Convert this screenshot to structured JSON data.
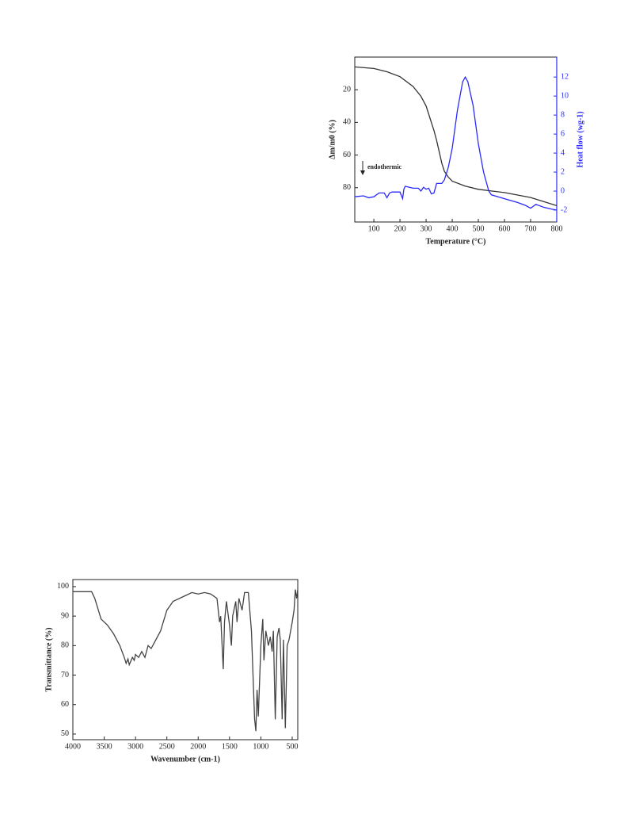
{
  "chart_data": [
    {
      "type": "line",
      "xlabel": "Temperature (°C)",
      "ylabel": "Δm/m0 (%)",
      "y2label": "Heat flow (wg-1)",
      "annotations": [
        "endothermic"
      ],
      "xlim": [
        27,
        800
      ],
      "xticks": [
        100,
        200,
        300,
        400,
        500,
        600,
        700,
        800
      ],
      "ylim": [
        101,
        0
      ],
      "yticks": [
        20,
        40,
        60,
        80
      ],
      "y2lim": [
        -3.25,
        14.1
      ],
      "y2ticks": [
        -2,
        0,
        2,
        4,
        6,
        8,
        10,
        12
      ],
      "y2_color": "#2a2aff",
      "series": [
        {
          "color": "#333333",
          "x": [
            27,
            100,
            150,
            200,
            250,
            280,
            300,
            320,
            330,
            340,
            350,
            360,
            370,
            385,
            400,
            450,
            500,
            550,
            600,
            650,
            700,
            750,
            800
          ],
          "values": [
            6,
            7,
            9,
            12,
            18,
            24,
            30,
            40,
            45,
            51,
            58,
            65,
            70,
            73.5,
            76,
            79,
            81,
            82,
            83,
            84.5,
            86,
            88.5,
            91
          ]
        },
        {
          "color": "#2a2aff",
          "axis": "y2",
          "x": [
            27,
            60,
            80,
            100,
            120,
            140,
            150,
            160,
            170,
            200,
            210,
            215,
            220,
            250,
            270,
            280,
            290,
            300,
            310,
            320,
            330,
            340,
            360,
            370,
            385,
            400,
            420,
            440,
            450,
            460,
            480,
            500,
            520,
            540,
            550,
            600,
            650,
            680,
            700,
            720,
            750,
            780,
            800
          ],
          "values": [
            -0.6,
            -0.5,
            -0.7,
            -0.6,
            -0.2,
            -0.2,
            -0.7,
            -0.2,
            -0.1,
            -0.1,
            -0.8,
            0.2,
            0.5,
            0.3,
            0.3,
            0,
            0.4,
            0.2,
            0.3,
            -0.3,
            -0.2,
            0.8,
            0.8,
            1.2,
            2.5,
            4.5,
            8.5,
            11.5,
            12,
            11.5,
            9,
            5,
            2,
            0,
            -0.4,
            -0.8,
            -1.2,
            -1.5,
            -1.8,
            -1.4,
            -1.7,
            -1.9,
            -2
          ]
        }
      ]
    },
    {
      "type": "line",
      "xlabel": "Wavenumber (cm-1)",
      "ylabel": "Transmittance (%)",
      "xlim": [
        4000,
        411
      ],
      "xticks": [
        4000,
        3500,
        3000,
        2500,
        2000,
        1500,
        1000,
        500
      ],
      "ylim": [
        48.1,
        102.4
      ],
      "yticks": [
        50,
        60,
        70,
        80,
        90,
        100
      ],
      "series": [
        {
          "color": "#444444",
          "x": [
            4000,
            3700,
            3650,
            3550,
            3450,
            3350,
            3250,
            3180,
            3150,
            3120,
            3100,
            3050,
            3020,
            3000,
            2950,
            2900,
            2850,
            2800,
            2750,
            2700,
            2600,
            2500,
            2400,
            2200,
            2100,
            2000,
            1900,
            1800,
            1700,
            1660,
            1640,
            1600,
            1580,
            1550,
            1500,
            1470,
            1450,
            1400,
            1380,
            1350,
            1300,
            1260,
            1200,
            1150,
            1100,
            1080,
            1060,
            1040,
            1000,
            970,
            950,
            920,
            880,
            850,
            820,
            800,
            770,
            740,
            710,
            690,
            660,
            640,
            610,
            580,
            550,
            500,
            470,
            450,
            430,
            411
          ],
          "values": [
            98.3,
            98.3,
            96,
            89,
            87,
            84,
            80,
            76,
            74,
            75.5,
            73.5,
            76,
            75,
            77,
            76,
            78,
            76,
            80,
            79,
            81,
            85,
            92,
            95,
            97,
            98,
            97.5,
            98,
            97.5,
            96,
            88,
            90,
            72,
            88,
            95,
            87,
            80,
            90,
            95,
            88,
            96,
            92,
            98,
            98,
            85,
            55,
            51,
            65,
            56,
            80,
            89,
            75,
            85,
            80,
            83,
            78,
            85,
            55,
            83,
            86,
            82,
            55,
            82,
            52,
            80,
            82,
            88,
            92,
            99,
            96,
            99
          ]
        }
      ]
    }
  ]
}
